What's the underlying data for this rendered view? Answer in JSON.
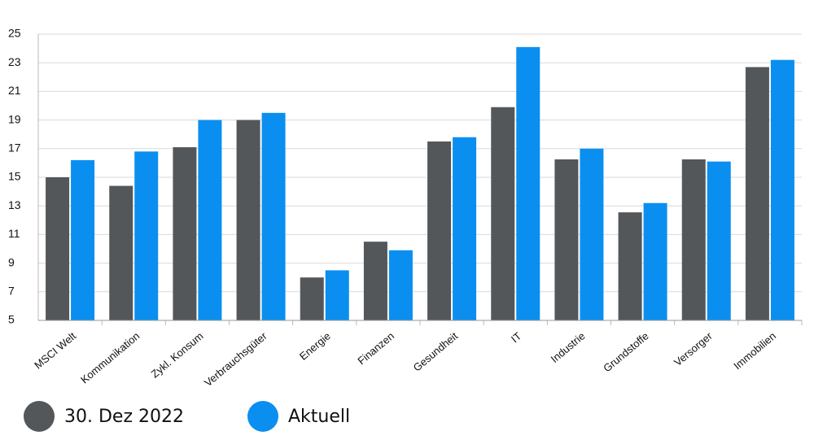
{
  "chart_data": {
    "type": "bar",
    "categories": [
      "MSCI Welt",
      "Kommunikation",
      "Zykl. Konsum",
      "Verbrauchsgüter",
      "Energie",
      "Finanzen",
      "Gesundheit",
      "IT",
      "Industrie",
      "Grundstoffe",
      "Versorger",
      "Immobilien"
    ],
    "series": [
      {
        "name": "30. Dez 2022",
        "color": "#54575a",
        "values": [
          15.0,
          14.4,
          17.1,
          19.0,
          8.0,
          10.5,
          17.5,
          19.9,
          16.25,
          12.55,
          16.25,
          22.7
        ]
      },
      {
        "name": "Aktuell",
        "color": "#0a8ff0",
        "values": [
          16.2,
          16.8,
          19.0,
          19.5,
          8.5,
          9.9,
          17.8,
          24.1,
          17.0,
          13.2,
          16.1,
          23.2
        ]
      }
    ],
    "ylim": [
      5,
      25
    ],
    "yticks": [
      5,
      7,
      9,
      11,
      13,
      15,
      17,
      19,
      21,
      23,
      25
    ],
    "grid": true,
    "legend": "bottom-left"
  }
}
